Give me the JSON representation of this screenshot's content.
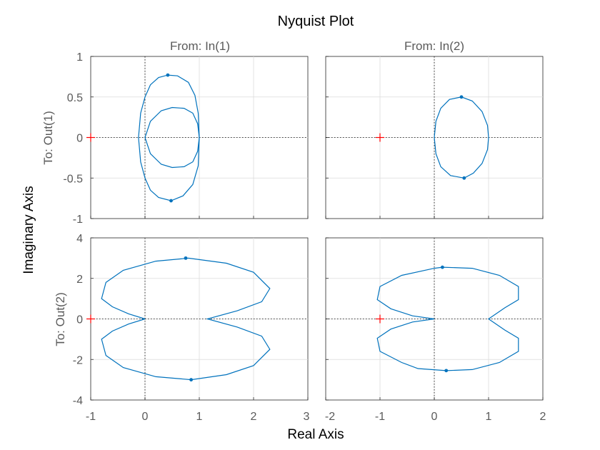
{
  "chart_data": {
    "type": "line",
    "title": "Nyquist Plot",
    "xlabel": "Real Axis",
    "ylabel": "Imaginary Axis",
    "columns": [
      "From: In(1)",
      "From: In(2)"
    ],
    "rows": [
      "To: Out(1)",
      "To: Out(2)"
    ],
    "grid": true,
    "colors": {
      "curve": "#0072bd",
      "critical_point": "#ff0000",
      "frame": "#262626",
      "grid": "#dcdcdc"
    },
    "critical_point": [
      -1,
      0
    ],
    "xlim_col1": [
      -1,
      3
    ],
    "xticks_col1": [
      "-1",
      "0",
      "1",
      "2",
      "3"
    ],
    "xlim_col2": [
      -2,
      2
    ],
    "xticks_col2": [
      "-2",
      "-1",
      "0",
      "1",
      "2"
    ],
    "ylim_row1": [
      -1,
      1
    ],
    "yticks_row1": [
      "-1",
      "-0.5",
      "0",
      "0.5",
      "1"
    ],
    "ylim_row2": [
      -4,
      4
    ],
    "yticks_row2": [
      "-4",
      "-2",
      "0",
      "2",
      "4"
    ],
    "panels": [
      {
        "row": 0,
        "col": 0,
        "curves": [
          [
            [
              1.0,
              0.0
            ],
            [
              0.98,
              0.3
            ],
            [
              0.92,
              0.52
            ],
            [
              0.8,
              0.68
            ],
            [
              0.6,
              0.76
            ],
            [
              0.42,
              0.77
            ],
            [
              0.25,
              0.74
            ],
            [
              0.1,
              0.65
            ],
            [
              0.0,
              0.5
            ],
            [
              -0.08,
              0.3
            ],
            [
              -0.12,
              0.0
            ],
            [
              -0.08,
              -0.3
            ],
            [
              0.0,
              -0.5
            ],
            [
              0.1,
              -0.65
            ],
            [
              0.25,
              -0.74
            ],
            [
              0.48,
              -0.78
            ],
            [
              0.7,
              -0.72
            ],
            [
              0.88,
              -0.58
            ],
            [
              0.98,
              -0.35
            ],
            [
              1.0,
              0.0
            ]
          ],
          [
            [
              1.0,
              0.0
            ],
            [
              0.97,
              0.17
            ],
            [
              0.88,
              0.3
            ],
            [
              0.72,
              0.36
            ],
            [
              0.5,
              0.37
            ],
            [
              0.3,
              0.33
            ],
            [
              0.1,
              0.2
            ],
            [
              0.0,
              0.0
            ],
            [
              0.1,
              -0.2
            ],
            [
              0.3,
              -0.33
            ],
            [
              0.5,
              -0.37
            ],
            [
              0.72,
              -0.36
            ],
            [
              0.88,
              -0.3
            ],
            [
              0.97,
              -0.17
            ],
            [
              1.0,
              0.0
            ]
          ]
        ],
        "markers": [
          [
            0.42,
            0.77
          ],
          [
            0.48,
            -0.78
          ]
        ]
      },
      {
        "row": 0,
        "col": 1,
        "curves": [
          [
            [
              0.0,
              0.0
            ],
            [
              0.03,
              0.2
            ],
            [
              0.12,
              0.36
            ],
            [
              0.28,
              0.47
            ],
            [
              0.5,
              0.5
            ],
            [
              0.7,
              0.45
            ],
            [
              0.88,
              0.32
            ],
            [
              0.98,
              0.15
            ],
            [
              1.0,
              0.0
            ],
            [
              0.98,
              -0.15
            ],
            [
              0.88,
              -0.32
            ],
            [
              0.72,
              -0.44
            ],
            [
              0.55,
              -0.5
            ],
            [
              0.3,
              -0.47
            ],
            [
              0.12,
              -0.36
            ],
            [
              0.03,
              -0.2
            ],
            [
              0.0,
              0.0
            ]
          ]
        ],
        "markers": [
          [
            0.5,
            0.5
          ],
          [
            0.55,
            -0.5
          ]
        ]
      },
      {
        "row": 1,
        "col": 0,
        "curves": [
          [
            [
              0.0,
              0.0
            ],
            [
              -0.3,
              0.25
            ],
            [
              -0.6,
              0.6
            ],
            [
              -0.8,
              1.0
            ],
            [
              -0.72,
              1.8
            ],
            [
              -0.4,
              2.4
            ],
            [
              0.2,
              2.85
            ],
            [
              0.8,
              3.0
            ],
            [
              1.5,
              2.75
            ],
            [
              2.0,
              2.3
            ],
            [
              2.3,
              1.5
            ],
            [
              2.15,
              0.85
            ],
            [
              1.7,
              0.4
            ],
            [
              1.15,
              0.0
            ],
            [
              1.7,
              -0.4
            ],
            [
              2.15,
              -0.85
            ],
            [
              2.3,
              -1.5
            ],
            [
              2.0,
              -2.3
            ],
            [
              1.5,
              -2.75
            ],
            [
              0.85,
              -3.0
            ],
            [
              0.2,
              -2.85
            ],
            [
              -0.4,
              -2.4
            ],
            [
              -0.72,
              -1.8
            ],
            [
              -0.8,
              -1.0
            ],
            [
              -0.6,
              -0.6
            ],
            [
              -0.3,
              -0.25
            ],
            [
              0.0,
              0.0
            ]
          ]
        ],
        "markers": [
          [
            0.75,
            3.0
          ],
          [
            0.85,
            -3.0
          ]
        ]
      },
      {
        "row": 1,
        "col": 1,
        "curves": [
          [
            [
              0.0,
              0.0
            ],
            [
              -0.4,
              0.15
            ],
            [
              -0.8,
              0.5
            ],
            [
              -1.05,
              0.95
            ],
            [
              -1.0,
              1.6
            ],
            [
              -0.6,
              2.15
            ],
            [
              0.0,
              2.5
            ],
            [
              0.15,
              2.55
            ],
            [
              0.7,
              2.5
            ],
            [
              1.2,
              2.15
            ],
            [
              1.55,
              1.6
            ],
            [
              1.55,
              0.95
            ],
            [
              1.3,
              0.55
            ],
            [
              1.0,
              0.0
            ],
            [
              1.3,
              -0.55
            ],
            [
              1.55,
              -0.95
            ],
            [
              1.55,
              -1.6
            ],
            [
              1.2,
              -2.15
            ],
            [
              0.7,
              -2.5
            ],
            [
              0.22,
              -2.55
            ],
            [
              -0.3,
              -2.45
            ],
            [
              -0.6,
              -2.15
            ],
            [
              -1.0,
              -1.6
            ],
            [
              -1.05,
              -0.95
            ],
            [
              -0.8,
              -0.5
            ],
            [
              -0.4,
              -0.15
            ],
            [
              0.0,
              0.0
            ]
          ]
        ],
        "markers": [
          [
            0.15,
            2.55
          ],
          [
            0.22,
            -2.55
          ]
        ]
      }
    ]
  }
}
